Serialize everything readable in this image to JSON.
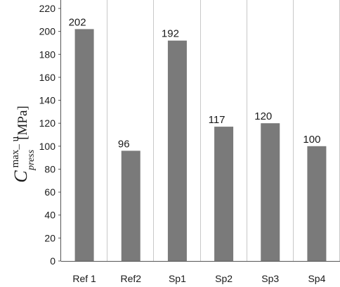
{
  "chart_data": {
    "type": "bar",
    "categories": [
      "Ref 1",
      "Ref2",
      "Sp1",
      "Sp2",
      "Sp3",
      "Sp4"
    ],
    "values": [
      202,
      96,
      192,
      117,
      120,
      100
    ],
    "data_labels": [
      "202",
      "96",
      "192",
      "117",
      "120",
      "100"
    ],
    "ylabel": {
      "symbol": "C",
      "superscript": "max_ u",
      "subscript": "press",
      "unit": "[MPa]"
    },
    "ylim": [
      0,
      220
    ],
    "yticks": [
      0,
      20,
      40,
      60,
      80,
      100,
      120,
      140,
      160,
      180,
      200,
      220
    ],
    "grid": "vertical",
    "legend": "none",
    "bar_color": "#7a7a7a",
    "grid_color": "#c8c8c8"
  }
}
